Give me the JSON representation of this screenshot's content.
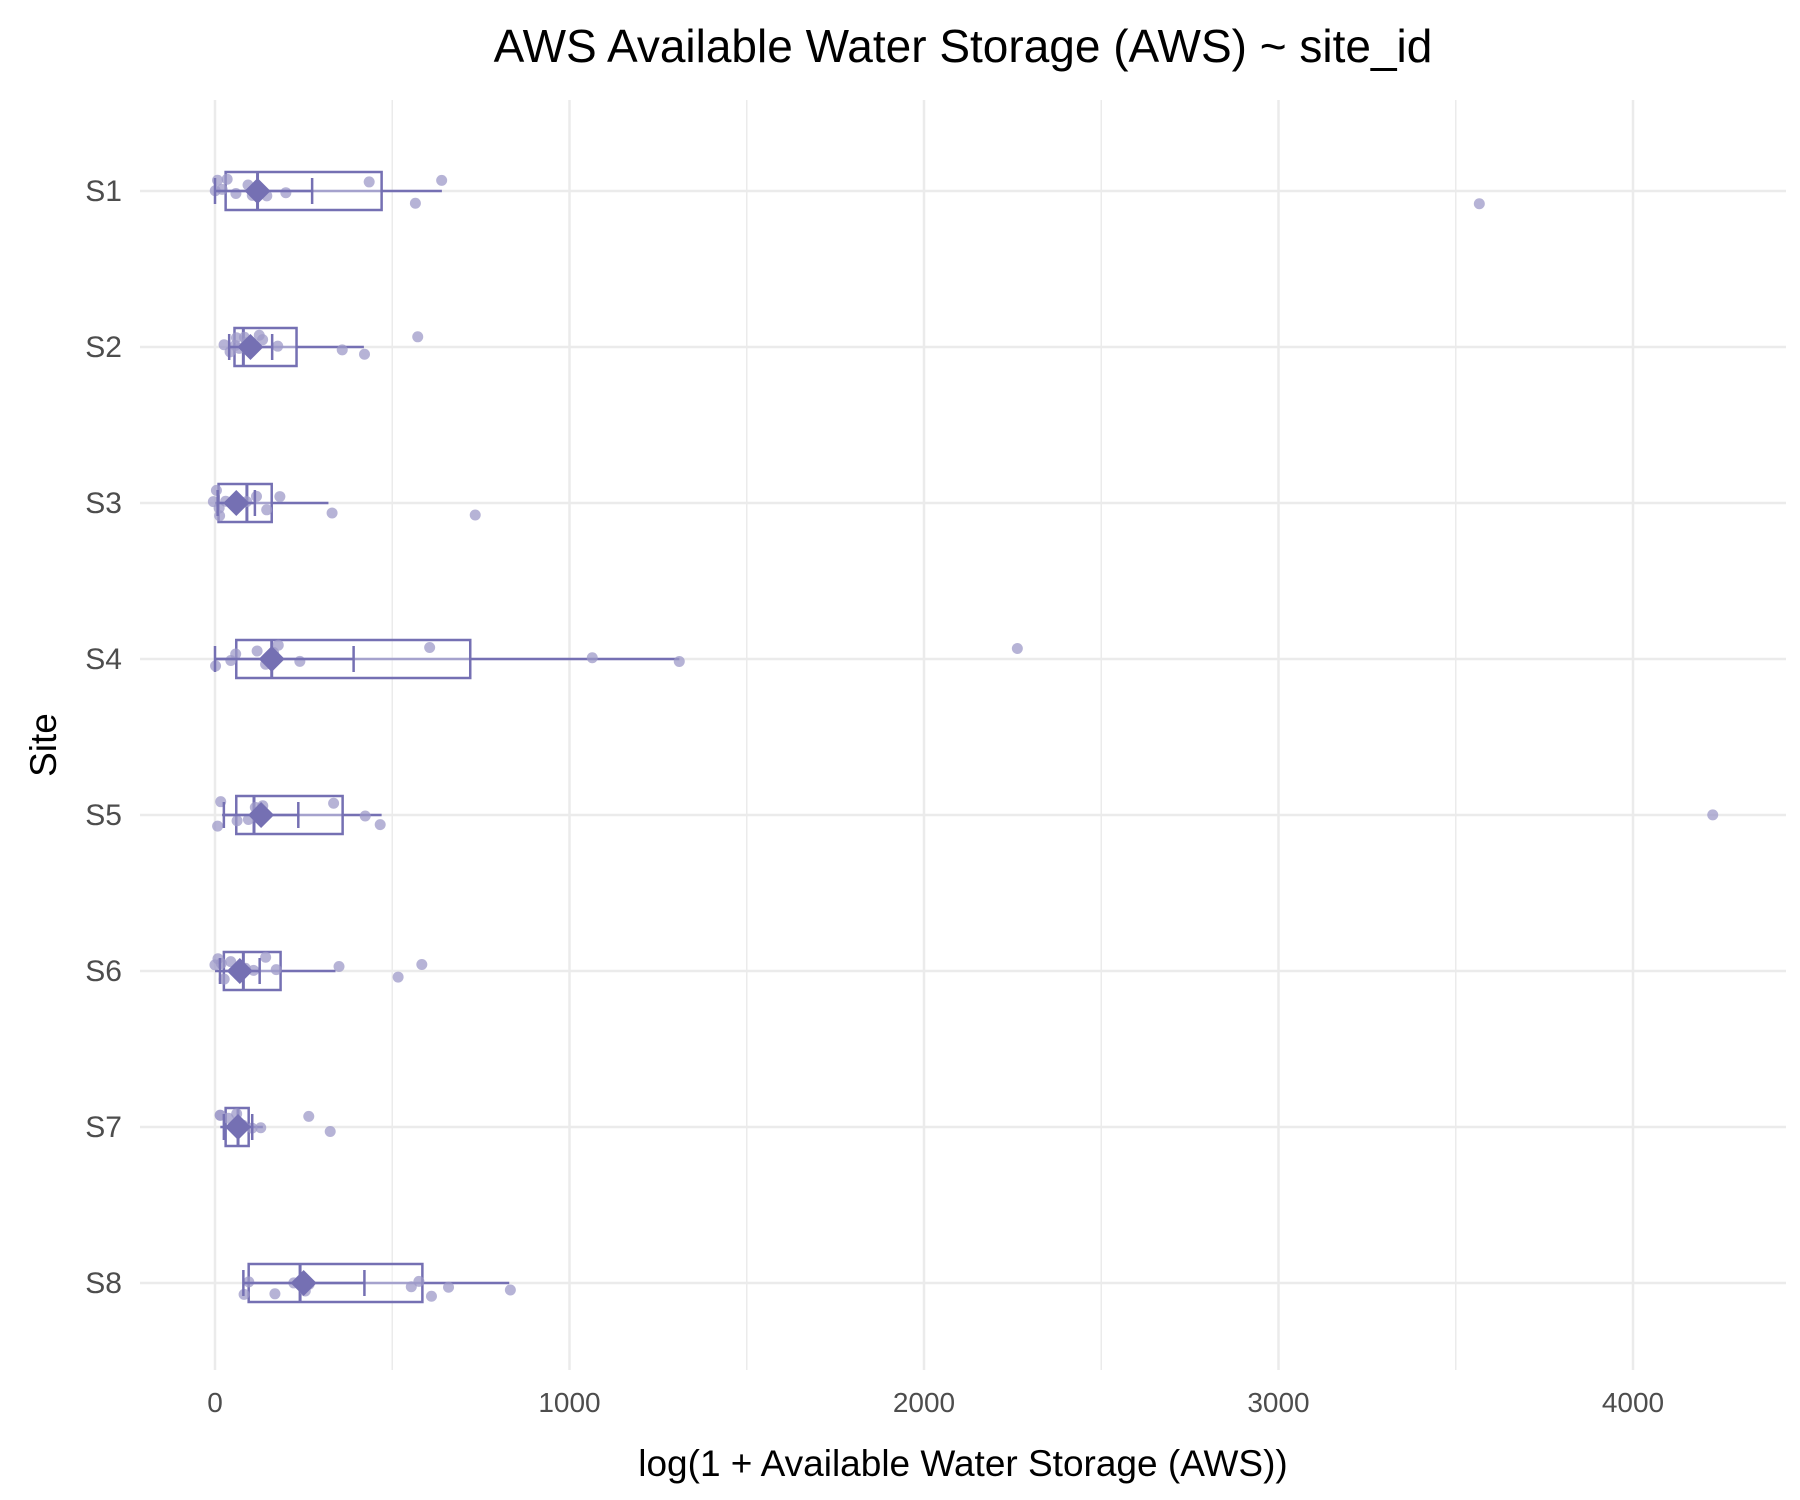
{
  "chart_data": {
    "type": "box",
    "title": "AWS Available Water Storage (AWS) ~ site_id",
    "xlabel": "log(1 + Available Water Storage (AWS))",
    "ylabel": "Site",
    "xlim": [
      -220,
      4450
    ],
    "x_ticks": [
      0,
      1000,
      2000,
      3000,
      4000
    ],
    "grid": true,
    "legend": "none",
    "colors": {
      "box": "#7570b3",
      "points": "#9e9ac8",
      "grid": "#ebebeb"
    },
    "sites": [
      {
        "name": "S1",
        "q1": 30,
        "median": 120,
        "q3": 470,
        "whisker_low": 0,
        "whisker_high": 640,
        "mean": 120,
        "points": [
          0,
          10,
          20,
          30,
          60,
          90,
          110,
          130,
          150,
          200,
          440,
          560,
          640,
          3570
        ]
      },
      {
        "name": "S2",
        "q1": 55,
        "median": 80,
        "q3": 230,
        "whisker_low": 40,
        "whisker_high": 420,
        "mean": 100,
        "points": [
          25,
          45,
          55,
          60,
          70,
          80,
          90,
          120,
          130,
          180,
          360,
          420,
          575
        ]
      },
      {
        "name": "S3",
        "q1": 10,
        "median": 90,
        "q3": 160,
        "whisker_low": 0,
        "whisker_high": 320,
        "mean": 60,
        "points": [
          0,
          5,
          10,
          15,
          30,
          60,
          90,
          120,
          150,
          180,
          325,
          730
        ]
      },
      {
        "name": "S4",
        "q1": 60,
        "median": 160,
        "q3": 720,
        "whisker_low": 0,
        "whisker_high": 1310,
        "mean": 160,
        "points": [
          0,
          50,
          60,
          120,
          140,
          160,
          180,
          240,
          600,
          1060,
          1310,
          2260
        ]
      },
      {
        "name": "S5",
        "q1": 60,
        "median": 110,
        "q3": 360,
        "whisker_low": 20,
        "whisker_high": 470,
        "mean": 130,
        "points": [
          10,
          20,
          60,
          90,
          110,
          140,
          340,
          420,
          470,
          4230
        ]
      },
      {
        "name": "S6",
        "q1": 25,
        "median": 80,
        "q3": 185,
        "whisker_low": 0,
        "whisker_high": 340,
        "mean": 70,
        "points": [
          0,
          10,
          20,
          30,
          50,
          70,
          90,
          110,
          140,
          170,
          345,
          515,
          585
        ]
      },
      {
        "name": "S7",
        "q1": 30,
        "median": 65,
        "q3": 95,
        "whisker_low": 15,
        "whisker_high": 135,
        "mean": 65,
        "points": [
          10,
          20,
          40,
          60,
          80,
          100,
          130,
          260,
          325
        ]
      },
      {
        "name": "S8",
        "q1": 95,
        "median": 240,
        "q3": 585,
        "whisker_low": 80,
        "whisker_high": 830,
        "mean": 250,
        "points": [
          80,
          90,
          170,
          220,
          250,
          260,
          550,
          580,
          610,
          660,
          830
        ]
      }
    ]
  }
}
